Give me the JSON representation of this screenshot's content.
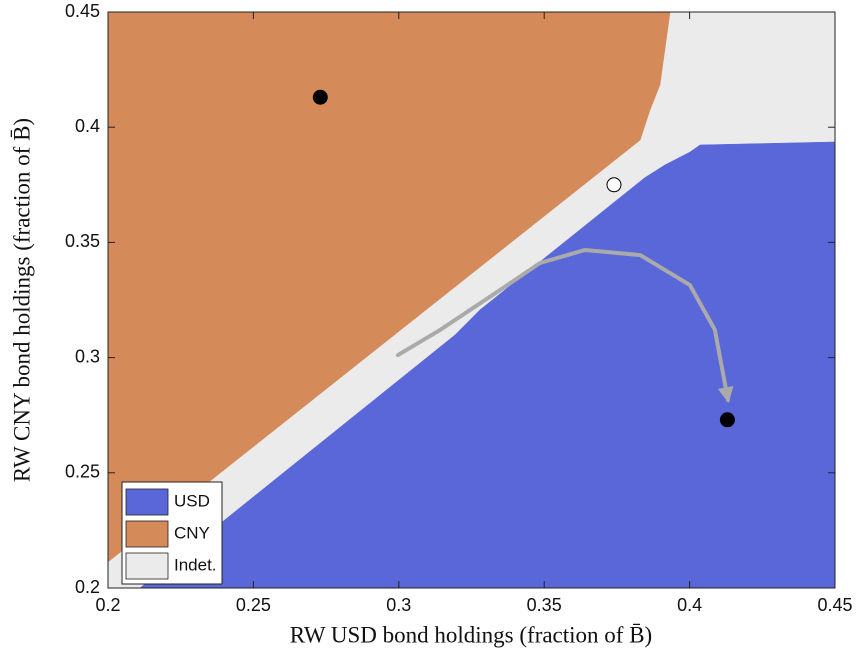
{
  "chart_data": {
    "type": "region",
    "xlabel": "RW USD bond holdings (fraction of B̄)",
    "ylabel": "RW CNY bond holdings (fraction of B̄)",
    "xlim": [
      0.2,
      0.45
    ],
    "ylim": [
      0.2,
      0.45
    ],
    "xticks": [
      0.2,
      0.25,
      0.3,
      0.35,
      0.4,
      0.45
    ],
    "yticks": [
      0.2,
      0.25,
      0.3,
      0.35,
      0.4,
      0.45
    ],
    "legend": "lower left",
    "regions": [
      {
        "name": "USD",
        "color": "#5a67d8",
        "x": [
          0.45,
          0.4036,
          0.4001,
          0.3915,
          0.3845,
          0.3279,
          0.3193,
          0.211,
          0.45
        ],
        "y": [
          0.3936,
          0.3923,
          0.3892,
          0.3836,
          0.378,
          0.3207,
          0.3098,
          0.2,
          0.2
        ]
      },
      {
        "name": "CNY",
        "color": "#d58a59",
        "x": [
          0.2,
          0.3933,
          0.3898,
          0.3864,
          0.383,
          0.2
        ],
        "y": [
          0.45,
          0.45,
          0.4183,
          0.4075,
          0.3944,
          0.2113
        ]
      },
      {
        "name": "Indet.",
        "color": "#ebebeb",
        "x": [
          0.2,
          0.45,
          0.45,
          0.2
        ],
        "y": [
          0.2,
          0.2,
          0.45,
          0.45
        ]
      }
    ],
    "points": [
      {
        "x": 0.273,
        "y": 0.413,
        "color": "#000000"
      },
      {
        "x": 0.413,
        "y": 0.273,
        "color": "#000000"
      },
      {
        "x": 0.374,
        "y": 0.375,
        "color": "#ffffff"
      }
    ],
    "path": {
      "color": "#aaaaaa",
      "x": [
        0.2997,
        0.3142,
        0.3348,
        0.3486,
        0.364,
        0.383,
        0.4001,
        0.4087,
        0.4132
      ],
      "y": [
        0.3011,
        0.312,
        0.3293,
        0.3411,
        0.3467,
        0.3445,
        0.3315,
        0.312,
        0.2816
      ]
    }
  }
}
